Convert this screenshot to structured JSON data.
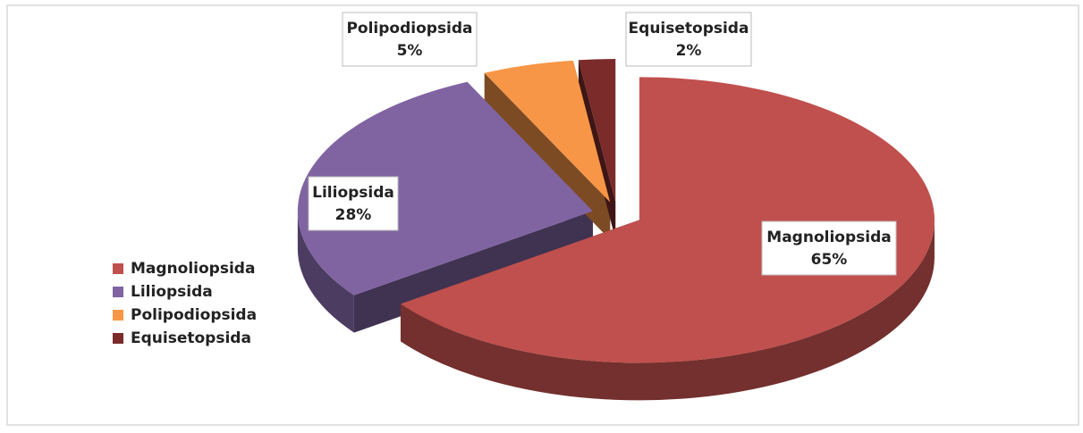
{
  "chart_data": {
    "type": "pie",
    "categories": [
      "Magnoliopsida",
      "Liliopsida",
      "Polipodiopsida",
      "Equisetopsida"
    ],
    "values": [
      65,
      28,
      5,
      2
    ],
    "value_labels": [
      "65%",
      "28%",
      "5%",
      "2%"
    ],
    "colors": [
      "#c0504d",
      "#8064a2",
      "#f79646",
      "#7a2b2a"
    ],
    "legend": "left"
  }
}
